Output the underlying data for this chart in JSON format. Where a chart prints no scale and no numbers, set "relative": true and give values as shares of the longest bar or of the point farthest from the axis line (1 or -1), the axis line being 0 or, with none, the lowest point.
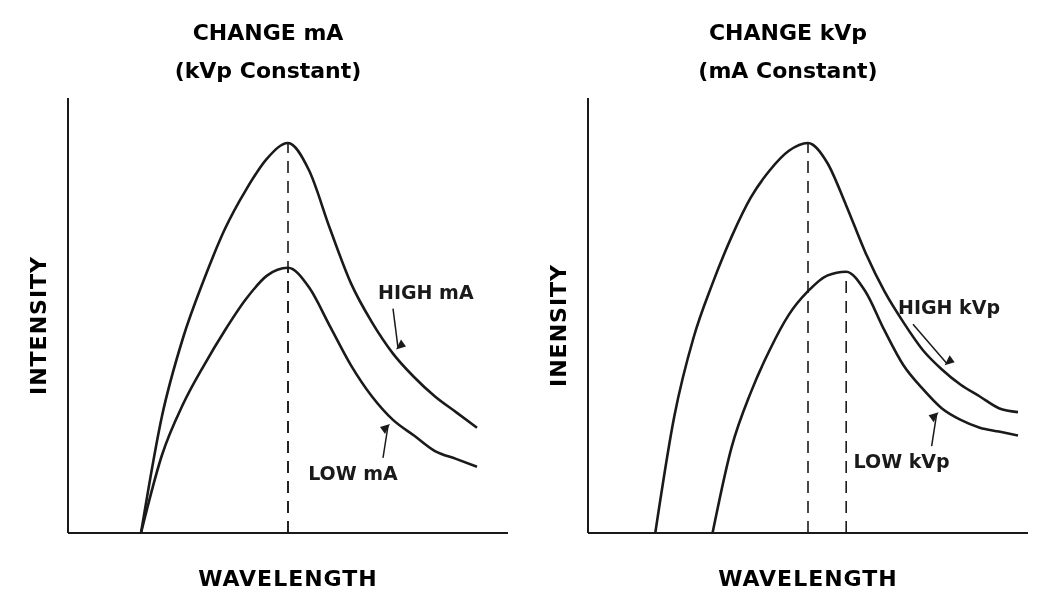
{
  "chart_data": [
    {
      "type": "line",
      "title": "CHANGE mA",
      "subtitle": "(kVp Constant)",
      "xlabel": "WAVELENGTH",
      "ylabel": "INTENSITY",
      "relative": true,
      "categories": [
        null,
        null,
        null,
        null,
        null,
        null,
        null,
        null,
        null,
        null,
        null,
        null,
        null,
        null,
        null,
        null,
        null,
        null,
        null,
        null,
        null
      ],
      "series": [
        {
          "name": "HIGH mA",
          "color": "#1a1a1a",
          "values": [
            null,
            null,
            null,
            0,
            0.3,
            0.5,
            0.65,
            0.78,
            0.88,
            0.96,
            1.0,
            0.93,
            0.78,
            0.64,
            0.54,
            0.46,
            0.4,
            0.35,
            0.31,
            0.27,
            null
          ]
        },
        {
          "name": "LOW mA",
          "color": "#1a1a1a",
          "values": [
            null,
            null,
            null,
            0,
            0.2,
            0.33,
            0.43,
            0.52,
            0.6,
            0.66,
            0.68,
            0.63,
            0.53,
            0.43,
            0.35,
            0.29,
            0.25,
            0.21,
            0.19,
            0.17,
            null
          ]
        }
      ]
    },
    {
      "type": "line",
      "title": "CHANGE kVp",
      "subtitle": "(mA Constant)",
      "xlabel": "WAVELENGTH",
      "ylabel": "INENSITY",
      "relative": true,
      "categories": [
        null,
        null,
        null,
        null,
        null,
        null,
        null,
        null,
        null,
        null,
        null,
        null,
        null,
        null,
        null,
        null,
        null,
        null,
        null,
        null,
        null,
        null,
        null
      ],
      "series": [
        {
          "name": "HIGH kVp",
          "color": "#1a1a1a",
          "values": [
            null,
            null,
            null,
            0,
            0.3,
            0.5,
            0.64,
            0.76,
            0.86,
            0.93,
            0.98,
            1.0,
            0.95,
            0.84,
            0.72,
            0.62,
            0.54,
            0.47,
            0.42,
            0.38,
            0.35,
            0.32,
            0.31
          ]
        },
        {
          "name": "LOW kVp",
          "color": "#1a1a1a",
          "values": [
            null,
            null,
            null,
            null,
            null,
            null,
            0,
            0.22,
            0.36,
            0.47,
            0.56,
            0.62,
            0.66,
            0.67,
            0.62,
            0.52,
            0.43,
            0.37,
            0.32,
            0.29,
            0.27,
            0.26,
            0.25
          ]
        }
      ]
    }
  ]
}
